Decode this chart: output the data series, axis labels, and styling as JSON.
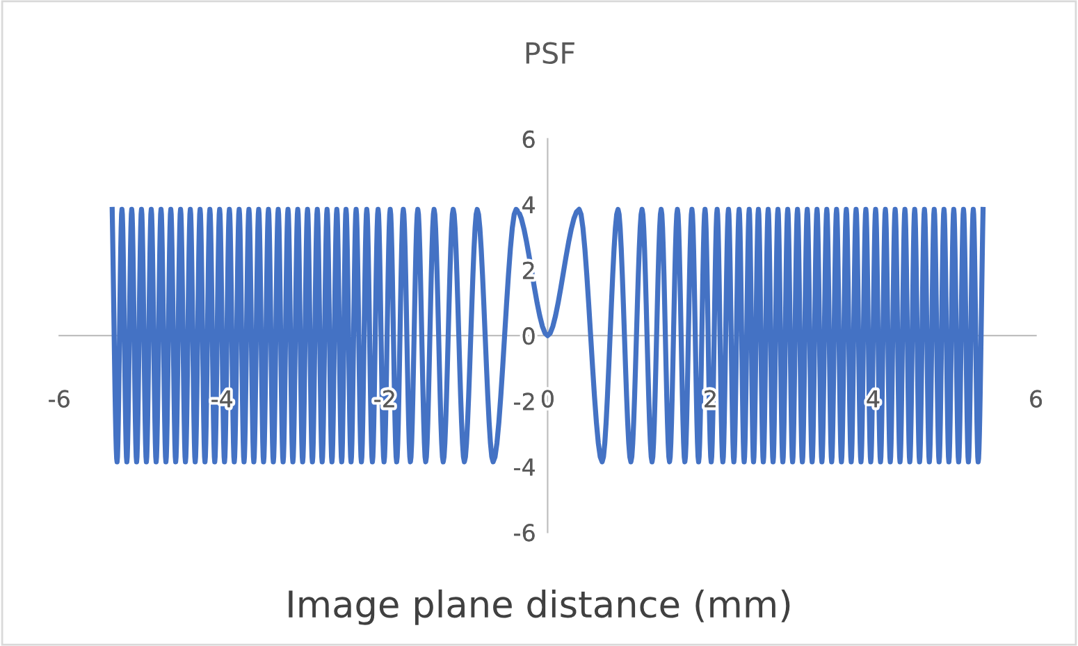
{
  "chart_data": {
    "type": "line",
    "title": "PSF",
    "xlabel": "Image plane distance (mm)",
    "xlim": [
      -6,
      6
    ],
    "ylim": [
      -6,
      6
    ],
    "xticks": [
      -6,
      -4,
      -2,
      0,
      2,
      4,
      6
    ],
    "yticks": [
      -6,
      -4,
      -2,
      0,
      2,
      4,
      6
    ],
    "grid": false,
    "legend": false,
    "marker": "none",
    "line_style": "solid",
    "series": [
      {
        "color": "#4472c4",
        "x": [
          -5.35,
          -5.29,
          -5.23,
          -5.17,
          -5.11,
          -5.05,
          -4.99,
          -4.93,
          -4.87,
          -4.81,
          -4.75,
          -4.69,
          -4.63,
          -4.57,
          -4.51,
          -4.45,
          -4.39,
          -4.33,
          -4.27,
          -4.21,
          -4.15,
          -4.09,
          -4.03,
          -3.97,
          -3.91,
          -3.85,
          -3.79,
          -3.73,
          -3.67,
          -3.61,
          -3.55,
          -3.49,
          -3.43,
          -3.37,
          -3.31,
          -3.25,
          -3.19,
          -3.13,
          -3.07,
          -3.01,
          -2.95,
          -2.89,
          -2.83,
          -2.77,
          -2.71,
          -2.65,
          -2.59,
          -2.53,
          -2.477,
          -2.415,
          -2.353,
          -2.288,
          -2.222,
          -2.153,
          -2.083,
          -2.01,
          -1.934,
          -1.855,
          -1.773,
          -1.686,
          -1.595,
          -1.498,
          -1.395,
          -1.283,
          -1.16,
          -1.023,
          -0.865,
          -0.67,
          -0.387,
          0,
          0.387,
          0.67,
          0.865,
          1.023,
          1.16,
          1.283,
          1.395,
          1.498,
          1.595,
          1.686,
          1.773,
          1.855,
          1.934,
          2.01,
          2.083,
          2.153,
          2.222,
          2.288,
          2.353,
          2.415,
          2.477,
          2.53,
          2.59,
          2.65,
          2.71,
          2.77,
          2.83,
          2.89,
          2.95,
          3.01,
          3.07,
          3.13,
          3.19,
          3.25,
          3.31,
          3.37,
          3.43,
          3.49,
          3.55,
          3.61,
          3.67,
          3.73,
          3.79,
          3.85,
          3.91,
          3.97,
          4.03,
          4.09,
          4.15,
          4.21,
          4.27,
          4.33,
          4.39,
          4.45,
          4.51,
          4.57,
          4.63,
          4.69,
          4.75,
          4.81,
          4.87,
          4.93,
          4.99,
          5.05,
          5.11,
          5.17,
          5.23,
          5.29,
          5.35
        ],
        "values": [
          3.85,
          -3.85,
          3.85,
          -3.85,
          3.85,
          -3.85,
          3.85,
          -3.85,
          3.85,
          -3.85,
          3.85,
          -3.85,
          3.85,
          -3.85,
          3.85,
          -3.85,
          3.85,
          -3.85,
          3.85,
          -3.85,
          3.85,
          -3.85,
          3.85,
          -3.85,
          3.85,
          -3.85,
          3.85,
          -3.85,
          3.85,
          -3.85,
          3.85,
          -3.85,
          3.85,
          -3.85,
          3.85,
          -3.85,
          3.85,
          -3.85,
          3.85,
          -3.85,
          3.85,
          -3.85,
          3.85,
          -3.85,
          3.85,
          -3.85,
          3.85,
          -3.85,
          3.85,
          -3.85,
          3.85,
          -3.85,
          3.85,
          -3.85,
          3.85,
          -3.85,
          3.85,
          -3.85,
          3.85,
          -3.85,
          3.85,
          -3.85,
          3.85,
          -3.85,
          3.85,
          -3.85,
          3.85,
          -3.85,
          3.85,
          0,
          3.85,
          -3.85,
          3.85,
          -3.85,
          3.85,
          -3.85,
          3.85,
          -3.85,
          3.85,
          -3.85,
          3.85,
          -3.85,
          3.85,
          -3.85,
          3.85,
          -3.85,
          3.85,
          -3.85,
          3.85,
          -3.85,
          3.85,
          -3.85,
          3.85,
          -3.85,
          3.85,
          -3.85,
          3.85,
          -3.85,
          3.85,
          -3.85,
          3.85,
          -3.85,
          3.85,
          -3.85,
          3.85,
          -3.85,
          3.85,
          -3.85,
          3.85,
          -3.85,
          3.85,
          -3.85,
          3.85,
          -3.85,
          3.85,
          -3.85,
          3.85,
          -3.85,
          3.85,
          -3.85,
          3.85,
          -3.85,
          3.85,
          -3.85,
          3.85,
          -3.85,
          3.85,
          -3.85,
          3.85,
          -3.85,
          3.85,
          -3.85,
          3.85,
          -3.85,
          3.85,
          -3.85,
          3.85,
          -3.85,
          3.85
        ]
      }
    ]
  }
}
